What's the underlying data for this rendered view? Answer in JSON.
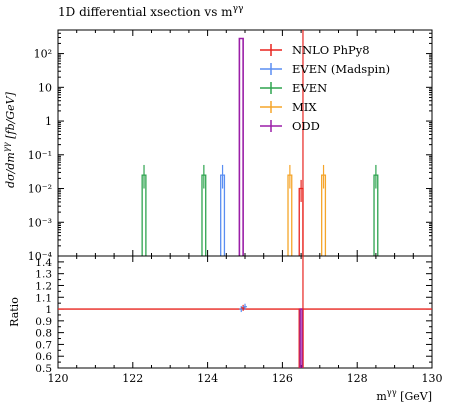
{
  "chart_data": [
    {
      "type": "histogram",
      "title": "1D differential xsection vs m^{γγ}",
      "ylabel": "dσ/dm^{γγ} [fb/GeV]",
      "xlabel": "",
      "xlim": [
        120,
        130
      ],
      "ylim": [
        0.0001,
        500
      ],
      "yscale": "log",
      "bin_width": 0.1,
      "ytick_labels": [
        "10⁻⁴",
        "10⁻³",
        "10⁻²",
        "10⁻¹",
        "1",
        "10",
        "10²"
      ],
      "legend_position": "top-right",
      "series": [
        {
          "name": "NNLO PhPy8",
          "color": "#e8241f",
          "bins": [
            {
              "x": 126.5,
              "y": 0.01,
              "err_lo": 0.004,
              "err_hi": 0.018
            }
          ]
        },
        {
          "name": "EVEN (Madspin)",
          "color": "#5a8ef2",
          "bins": [
            {
              "x": 124.4,
              "y": 0.025,
              "err_lo": 0.01,
              "err_hi": 0.05
            }
          ]
        },
        {
          "name": "EVEN",
          "color": "#2ea44f",
          "bins": [
            {
              "x": 122.3,
              "y": 0.025,
              "err_lo": 0.01,
              "err_hi": 0.05
            },
            {
              "x": 123.9,
              "y": 0.025,
              "err_lo": 0.01,
              "err_hi": 0.05
            },
            {
              "x": 128.5,
              "y": 0.025,
              "err_lo": 0.01,
              "err_hi": 0.05
            }
          ]
        },
        {
          "name": "MIX",
          "color": "#f5a52a",
          "bins": [
            {
              "x": 126.2,
              "y": 0.025,
              "err_lo": 0.01,
              "err_hi": 0.05
            },
            {
              "x": 127.1,
              "y": 0.025,
              "err_lo": 0.01,
              "err_hi": 0.05
            }
          ]
        },
        {
          "name": "ODD",
          "color": "#9b1fa8",
          "bins": [
            {
              "x": 124.9,
              "y": 280
            }
          ]
        }
      ]
    },
    {
      "type": "line",
      "title": "",
      "ylabel": "Ratio",
      "xlabel": "m^{γγ} [GeV]",
      "xlim": [
        120,
        130
      ],
      "ylim": [
        0.5,
        1.45
      ],
      "xticks": [
        120,
        122,
        124,
        126,
        128,
        130
      ],
      "yticks": [
        0.5,
        0.6,
        0.7,
        0.8,
        0.9,
        1,
        1.1,
        1.2,
        1.3,
        1.4
      ],
      "reference": {
        "y": 1.0,
        "color": "#e8241f"
      },
      "vertical_line": {
        "x": 126.55,
        "color": "#e8241f"
      },
      "points": [
        {
          "x": 124.9,
          "y": 1.0,
          "color": "#5a8ef2"
        },
        {
          "x": 124.95,
          "y": 1.01,
          "color": "#e8241f"
        },
        {
          "x": 125.0,
          "y": 1.02,
          "color": "#5a8ef2"
        }
      ],
      "bars": [
        {
          "x": 126.5,
          "y_low": 0.5,
          "y_high": 1.0,
          "color": "#e8241f"
        },
        {
          "x": 126.5,
          "y_low": 0.5,
          "y_high": 1.0,
          "color": "#9b1fa8"
        }
      ]
    }
  ]
}
